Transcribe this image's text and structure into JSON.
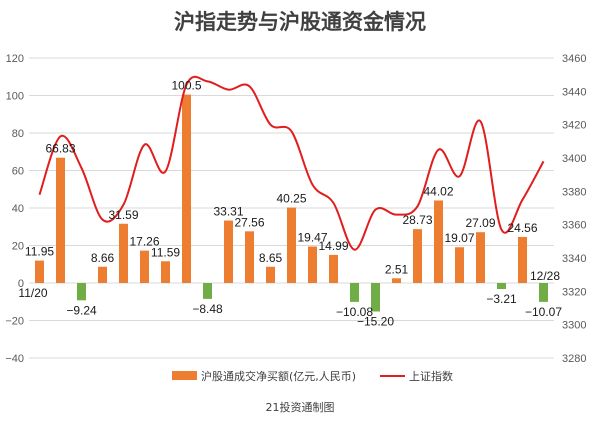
{
  "chart_data": {
    "type": "bar+line",
    "title": "沪指走势与沪股通资金情况",
    "source": "21投资通制图",
    "start_label": "11/20",
    "end_label": "12/28",
    "left_axis": {
      "min": -40,
      "max": 120,
      "ticks": [
        -40,
        -20,
        0,
        20,
        40,
        60,
        80,
        100,
        120
      ]
    },
    "right_axis": {
      "min": 3280,
      "max": 3460,
      "ticks": [
        3280,
        3300,
        3320,
        3340,
        3360,
        3380,
        3400,
        3420,
        3440,
        3460
      ]
    },
    "series": [
      {
        "name": "沪股通成交净买额(亿元,人民币)",
        "type": "bar",
        "axis": "left",
        "color_positive": "#ed7d31",
        "color_negative": "#70ad47",
        "values": [
          11.95,
          66.83,
          -9.24,
          8.66,
          31.59,
          17.26,
          11.59,
          100.5,
          -8.48,
          33.31,
          27.56,
          8.65,
          40.25,
          19.47,
          14.99,
          -10.08,
          -15.2,
          2.51,
          28.73,
          44.02,
          19.07,
          27.09,
          -3.21,
          24.56,
          -10.07
        ],
        "labels": [
          "11.95",
          "66.83",
          "−9.24",
          "8.66",
          "31.59",
          "17.26",
          "11.59",
          "100.5",
          "−8.48",
          "33.31",
          "27.56",
          "8.65",
          "40.25",
          "19.47",
          "14.99",
          "−10.08",
          "−15.20",
          "2.51",
          "28.73",
          "44.02",
          "19.07",
          "27.09",
          "−3.21",
          "24.56",
          "−10.07"
        ]
      },
      {
        "name": "上证指数",
        "type": "line",
        "axis": "right",
        "color": "#e11d1d",
        "values": [
          3378,
          3413,
          3394,
          3363,
          3372,
          3408,
          3392,
          3444,
          3446,
          3441,
          3443,
          3420,
          3416,
          3384,
          3373,
          3345,
          3369,
          3366,
          3371,
          3405,
          3389,
          3422,
          3357,
          3375,
          3398
        ]
      }
    ]
  }
}
